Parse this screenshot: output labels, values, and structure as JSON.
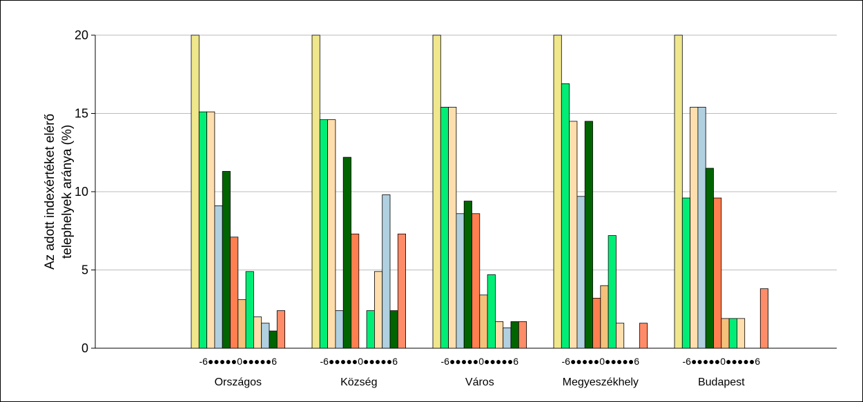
{
  "chart_data": {
    "type": "bar",
    "ylabel_lines": [
      "Az adott indexértéket elérő",
      "telephelyek aránya  (%)"
    ],
    "ylim": [
      0,
      20
    ],
    "yticks": [
      0,
      5,
      10,
      15,
      20
    ],
    "grid": true,
    "scale_label": "-6●●●●●0●●●●●6",
    "categories": [
      "Országos",
      "Község",
      "Város",
      "Megyeszékhely",
      "Budapest"
    ],
    "bar_colors": [
      "#f0e68c",
      "#00ee76",
      "#ffdead",
      "#b0d0e0",
      "#006400",
      "#ff7f50",
      "#f4c07a",
      "#00ee76",
      "#ffdead",
      "#b0d0e0",
      "#006400",
      "#ff8c69"
    ],
    "groups": [
      {
        "values": [
          20,
          15.1,
          15.1,
          9.1,
          11.3,
          7.1,
          3.1,
          4.9,
          2.0,
          1.6,
          1.1,
          2.4
        ]
      },
      {
        "values": [
          20,
          14.6,
          14.6,
          2.4,
          12.2,
          7.3,
          0,
          2.4,
          4.9,
          9.8,
          2.4,
          7.3
        ]
      },
      {
        "values": [
          20,
          15.4,
          15.4,
          8.6,
          9.4,
          8.6,
          3.4,
          4.7,
          1.7,
          1.3,
          1.7,
          1.7
        ]
      },
      {
        "values": [
          20,
          16.9,
          14.5,
          9.7,
          14.5,
          3.2,
          4.0,
          7.2,
          1.6,
          0,
          0,
          1.6
        ]
      },
      {
        "values": [
          20,
          9.6,
          15.4,
          15.4,
          11.5,
          9.6,
          1.9,
          1.9,
          1.9,
          0,
          0,
          3.8
        ]
      }
    ]
  }
}
